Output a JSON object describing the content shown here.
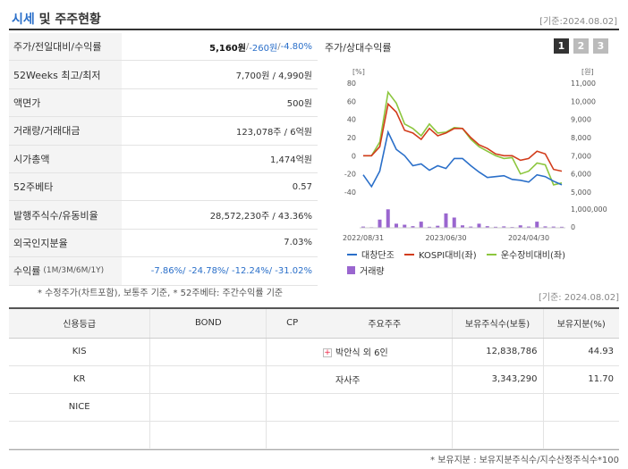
{
  "header": {
    "title_main": "시세",
    "title_rest": " 및 주주현황",
    "base_date": "[기준:2024.08.02]"
  },
  "market": {
    "rows": [
      {
        "label": "주가/전일대비/수익률",
        "price": "5,160원",
        "sep1": " / ",
        "change": "-260원",
        "sep2": " / ",
        "rate": "-4.80%"
      },
      {
        "label": "52Weeks 최고/최저",
        "value": "7,700원 / 4,990원"
      },
      {
        "label": "액면가",
        "value": "500원"
      },
      {
        "label": "거래량/거래대금",
        "value": "123,078주 / 6억원"
      },
      {
        "label": "시가총액",
        "value": "1,474억원"
      },
      {
        "label": "52주베타",
        "value": "0.57"
      },
      {
        "label": "발행주식수/유동비율",
        "value": "28,572,230주 / 43.36%"
      },
      {
        "label": "외국인지분율",
        "value": "7.03%"
      },
      {
        "label": "수익률",
        "label_sub": "(1M/3M/6M/1Y)",
        "value": "-7.86%/ -24.78%/ -12.24%/ -31.02%"
      }
    ],
    "note": "* 수정주가(차트포함), 보통주 기준, * 52주베타: 주간수익률 기준",
    "base_date2": "[기준: 2024.08.02]"
  },
  "chart_panel": {
    "title": "주가/상대수익률",
    "pages": [
      "1",
      "2",
      "3"
    ],
    "legend": {
      "series1": "대창단조",
      "series2": "KOSPI대비(좌)",
      "series3": "운수장비대비(좌)",
      "series4": "거래량"
    }
  },
  "chart_data": {
    "type": "line",
    "y_left_label": "[%]",
    "y_right_label": "[원]",
    "y_left_ticks": [
      "80",
      "60",
      "40",
      "20",
      "0",
      "-20",
      "-40"
    ],
    "y_right_ticks": [
      "11,000",
      "10,000",
      "9,000",
      "8,000",
      "7,000",
      "6,000",
      "5,000"
    ],
    "volume_tick_labels": [
      "1,000,000",
      "0"
    ],
    "x_ticks": [
      "2022/08/31",
      "2023/06/30",
      "2024/04/30"
    ],
    "ylim_left": [
      -40,
      80
    ],
    "ylim_right": [
      5000,
      11000
    ],
    "series": [
      {
        "name": "대창단조",
        "color": "#2a6fc9",
        "axis": "right",
        "values": [
          5950,
          5300,
          6150,
          8300,
          7350,
          7000,
          6450,
          6550,
          6200,
          6450,
          6300,
          6850,
          6850,
          6450,
          6100,
          5800,
          5850,
          5900,
          5700,
          5650,
          5550,
          5950,
          5850,
          5600,
          5400
        ]
      },
      {
        "name": "KOSPI대비(좌)",
        "color": "#d23c1b",
        "axis": "left",
        "values": [
          0,
          0,
          10,
          57,
          48,
          28,
          25,
          18,
          30,
          22,
          25,
          30,
          30,
          20,
          12,
          8,
          2,
          0,
          0,
          -5,
          -3,
          5,
          2,
          -15,
          -17
        ]
      },
      {
        "name": "운수장비대비(좌)",
        "color": "#8cc63e",
        "axis": "left",
        "values": [
          0,
          0,
          15,
          70,
          58,
          35,
          30,
          22,
          35,
          25,
          26,
          31,
          30,
          18,
          10,
          5,
          0,
          -3,
          -2,
          -20,
          -17,
          -8,
          -10,
          -32,
          -30
        ]
      },
      {
        "name": "거래량",
        "color": "#9a66cf",
        "axis": "volume",
        "values": [
          60000,
          30000,
          400000,
          900000,
          200000,
          150000,
          80000,
          300000,
          50000,
          100000,
          700000,
          500000,
          120000,
          60000,
          200000,
          80000,
          50000,
          70000,
          40000,
          120000,
          60000,
          300000,
          70000,
          60000,
          50000
        ]
      }
    ]
  },
  "credit": {
    "headers": [
      "신용등급",
      "BOND",
      "CP"
    ],
    "rows": [
      {
        "agency": "KIS",
        "bond": "",
        "cp": ""
      },
      {
        "agency": "KR",
        "bond": "",
        "cp": ""
      },
      {
        "agency": "NICE",
        "bond": "",
        "cp": ""
      },
      {
        "agency": "",
        "bond": "",
        "cp": ""
      }
    ]
  },
  "holders": {
    "headers": [
      "주요주주",
      "보유주식수(보통)",
      "보유지분(%)"
    ],
    "rows": [
      {
        "name": "박안식 외 6인",
        "shares": "12,838,786",
        "pct": "44.93",
        "expand": true
      },
      {
        "name": "자사주",
        "shares": "3,343,290",
        "pct": "11.70",
        "expand": false
      }
    ],
    "footnote": "* 보유지분 : 보유지분주식수/지수산정주식수*100"
  }
}
